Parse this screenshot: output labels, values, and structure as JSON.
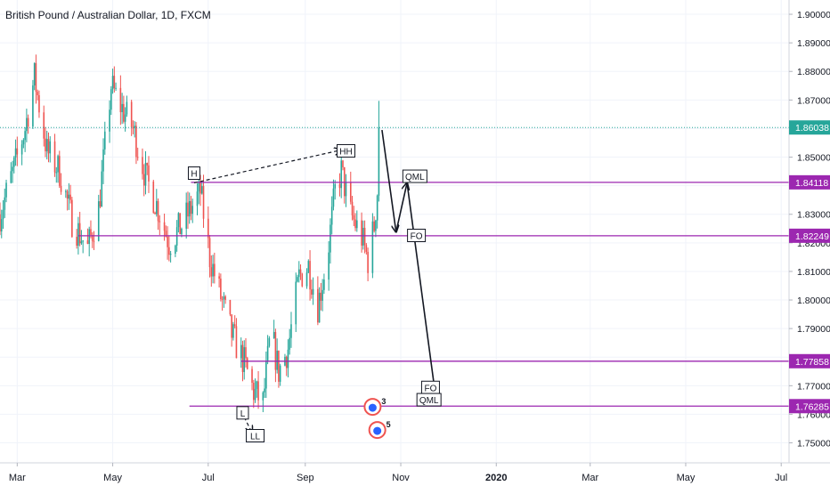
{
  "header": {
    "symbol_title": "British Pound / Australian Dollar, 1D, FXCM"
  },
  "colors": {
    "up": "#26a69a",
    "down": "#ef5350",
    "level_line": "#9c27b0",
    "level_tag_bg": "#9c27b0",
    "current_tag_bg": "#26a69a",
    "grid": "#f0f3fa",
    "axis_text": "#131722"
  },
  "current_price": {
    "value": 1.86038,
    "label": "1.86038"
  },
  "chart_data": {
    "type": "candlestick",
    "title": "British Pound / Australian Dollar, 1D, FXCM",
    "x_axis": {
      "type": "time",
      "range": [
        "2019-02-18",
        "2020-07-06"
      ],
      "tick_labels": [
        "Mar",
        "May",
        "Jul",
        "Sep",
        "Nov",
        "2020",
        "Mar",
        "May",
        "Jul"
      ],
      "tick_dates": [
        "2019-03-01",
        "2019-05-01",
        "2019-07-01",
        "2019-09-01",
        "2019-11-01",
        "2020-01-01",
        "2020-03-01",
        "2020-05-01",
        "2020-07-01"
      ]
    },
    "y_axis": {
      "range": [
        1.743,
        1.905
      ],
      "tick_labels": [
        "1.75000",
        "1.76000",
        "1.77000",
        "1.78000",
        "1.79000",
        "1.80000",
        "1.81000",
        "1.82000",
        "1.83000",
        "1.84000",
        "1.85000",
        "1.86000",
        "1.87000",
        "1.88000",
        "1.89000",
        "1.90000"
      ],
      "tick_values": [
        1.75,
        1.76,
        1.77,
        1.78,
        1.79,
        1.8,
        1.81,
        1.82,
        1.83,
        1.84,
        1.85,
        1.86,
        1.87,
        1.88,
        1.89,
        1.9
      ]
    },
    "grid": true,
    "price_anchors": [
      {
        "date": "2019-02-18",
        "close": 1.83
      },
      {
        "date": "2019-02-28",
        "close": 1.848
      },
      {
        "date": "2019-03-06",
        "close": 1.86
      },
      {
        "date": "2019-03-12",
        "close": 1.878
      },
      {
        "date": "2019-03-20",
        "close": 1.852
      },
      {
        "date": "2019-03-28",
        "close": 1.845
      },
      {
        "date": "2019-04-05",
        "close": 1.828
      },
      {
        "date": "2019-04-15",
        "close": 1.818
      },
      {
        "date": "2019-04-22",
        "close": 1.832
      },
      {
        "date": "2019-04-30",
        "close": 1.875
      },
      {
        "date": "2019-05-06",
        "close": 1.868
      },
      {
        "date": "2019-05-14",
        "close": 1.86
      },
      {
        "date": "2019-05-22",
        "close": 1.843
      },
      {
        "date": "2019-05-30",
        "close": 1.832
      },
      {
        "date": "2019-06-06",
        "close": 1.82
      },
      {
        "date": "2019-06-14",
        "close": 1.826
      },
      {
        "date": "2019-06-20",
        "close": 1.832
      },
      {
        "date": "2019-06-26",
        "close": 1.838
      },
      {
        "date": "2019-07-02",
        "close": 1.815
      },
      {
        "date": "2019-07-08",
        "close": 1.803
      },
      {
        "date": "2019-07-16",
        "close": 1.788
      },
      {
        "date": "2019-07-24",
        "close": 1.778
      },
      {
        "date": "2019-07-30",
        "close": 1.768
      },
      {
        "date": "2019-08-05",
        "close": 1.764
      },
      {
        "date": "2019-08-10",
        "close": 1.789
      },
      {
        "date": "2019-08-15",
        "close": 1.775
      },
      {
        "date": "2019-08-21",
        "close": 1.783
      },
      {
        "date": "2019-08-28",
        "close": 1.808
      },
      {
        "date": "2019-09-03",
        "close": 1.812
      },
      {
        "date": "2019-09-09",
        "close": 1.798
      },
      {
        "date": "2019-09-15",
        "close": 1.815
      },
      {
        "date": "2019-09-20",
        "close": 1.838
      },
      {
        "date": "2019-09-24",
        "close": 1.845
      },
      {
        "date": "2019-09-30",
        "close": 1.83
      },
      {
        "date": "2019-10-07",
        "close": 1.822
      },
      {
        "date": "2019-10-11",
        "close": 1.814
      },
      {
        "date": "2019-10-15",
        "close": 1.826
      },
      {
        "date": "2019-10-17",
        "close": 1.838
      },
      {
        "date": "2019-10-18",
        "close": 1.86038
      }
    ],
    "horizontal_levels": [
      {
        "value": 1.84118,
        "label": "1.84118",
        "from": "2019-06-20"
      },
      {
        "value": 1.82249,
        "label": "1.82249",
        "from": "2019-04-09"
      },
      {
        "value": 1.77858,
        "label": "1.77858",
        "from": "2019-07-22"
      },
      {
        "value": 1.76285,
        "label": "1.76285",
        "from": "2019-06-19"
      }
    ],
    "annotations": [
      {
        "text": "H",
        "date": "2019-06-22",
        "price": 1.8444
      },
      {
        "text": "HH",
        "date": "2019-09-27",
        "price": 1.8522
      },
      {
        "text": "L",
        "date": "2019-07-23",
        "price": 1.7605
      },
      {
        "text": "LL",
        "date": "2019-07-31",
        "price": 1.7525
      },
      {
        "text": "QML",
        "date": "2019-11-10",
        "price": 1.8433
      },
      {
        "text": "FO",
        "date": "2019-11-11",
        "price": 1.8226
      },
      {
        "text": "FO",
        "date": "2019-11-20",
        "price": 1.7694
      },
      {
        "text": "QML",
        "date": "2019-11-19",
        "price": 1.7651
      }
    ],
    "dashed_connectors": [
      {
        "from": [
          "2019-06-22",
          1.841
        ],
        "to": [
          "2019-09-24",
          1.8525
        ]
      },
      {
        "from": [
          "2019-07-24",
          1.759
        ],
        "to": [
          "2019-07-29",
          1.7535
        ]
      }
    ],
    "projection_arrows": [
      {
        "from": [
          "2019-10-20",
          1.8595
        ],
        "to": [
          "2019-10-29",
          1.8238
        ]
      },
      {
        "from": [
          "2019-10-29",
          1.8238
        ],
        "to": [
          "2019-11-05",
          1.841
        ]
      },
      {
        "from": [
          "2019-11-05",
          1.841
        ],
        "to": [
          "2019-11-24",
          1.7632
        ]
      }
    ],
    "events": [
      {
        "date": "2019-10-14",
        "count": "3"
      },
      {
        "date": "2019-10-17",
        "count": "5"
      }
    ]
  }
}
